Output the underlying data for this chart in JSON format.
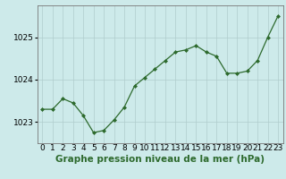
{
  "x": [
    0,
    1,
    2,
    3,
    4,
    5,
    6,
    7,
    8,
    9,
    10,
    11,
    12,
    13,
    14,
    15,
    16,
    17,
    18,
    19,
    20,
    21,
    22,
    23
  ],
  "y": [
    1023.3,
    1023.3,
    1023.55,
    1023.45,
    1023.15,
    1022.75,
    1022.8,
    1023.05,
    1023.35,
    1023.85,
    1024.05,
    1024.25,
    1024.45,
    1024.65,
    1024.7,
    1024.8,
    1024.65,
    1024.55,
    1024.15,
    1024.15,
    1024.2,
    1024.45,
    1025.0,
    1025.5
  ],
  "line_color": "#2d6a2d",
  "marker": "D",
  "marker_size": 2.0,
  "bg_color": "#cdeaea",
  "grid_color": "#b0cccc",
  "xlabel": "Graphe pression niveau de la mer (hPa)",
  "ylim": [
    1022.5,
    1025.75
  ],
  "yticks": [
    1023,
    1024,
    1025
  ],
  "xlim": [
    -0.5,
    23.5
  ],
  "xlabel_fontsize": 7.5,
  "tick_fontsize": 6.5
}
